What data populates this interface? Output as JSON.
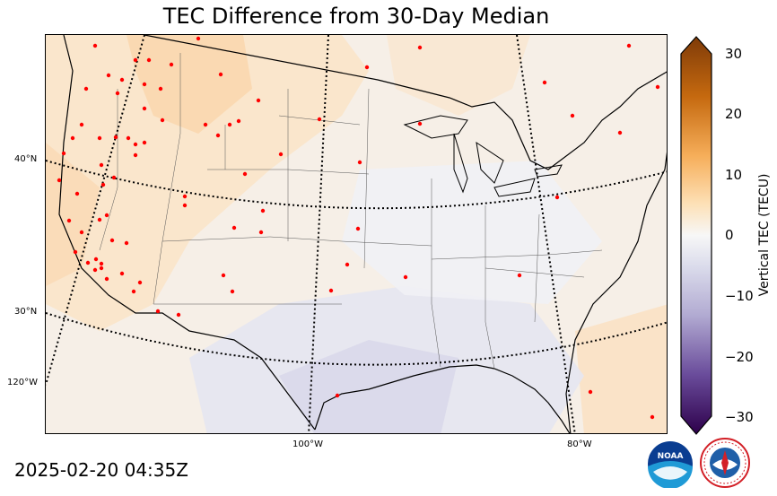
{
  "title": "TEC Difference from 30-Day Median",
  "timestamp": "2025-02-20 04:35Z",
  "lat_labels": [
    "40°N",
    "30°N",
    "120°W"
  ],
  "lon_labels": [
    "100°W",
    "80°W"
  ],
  "colorbar": {
    "label": "Vertical TEC (TECU)",
    "ticks": [
      "30",
      "20",
      "10",
      "0",
      "−10",
      "−20",
      "−30"
    ],
    "range": [
      -30,
      30
    ],
    "colors": {
      "max": "#7f3b08",
      "mid": "#f7f7f7",
      "min": "#2d004b"
    }
  },
  "logos": {
    "noaa": "NOAA",
    "nws": "NATIONAL WEATHER SERVICE"
  }
}
